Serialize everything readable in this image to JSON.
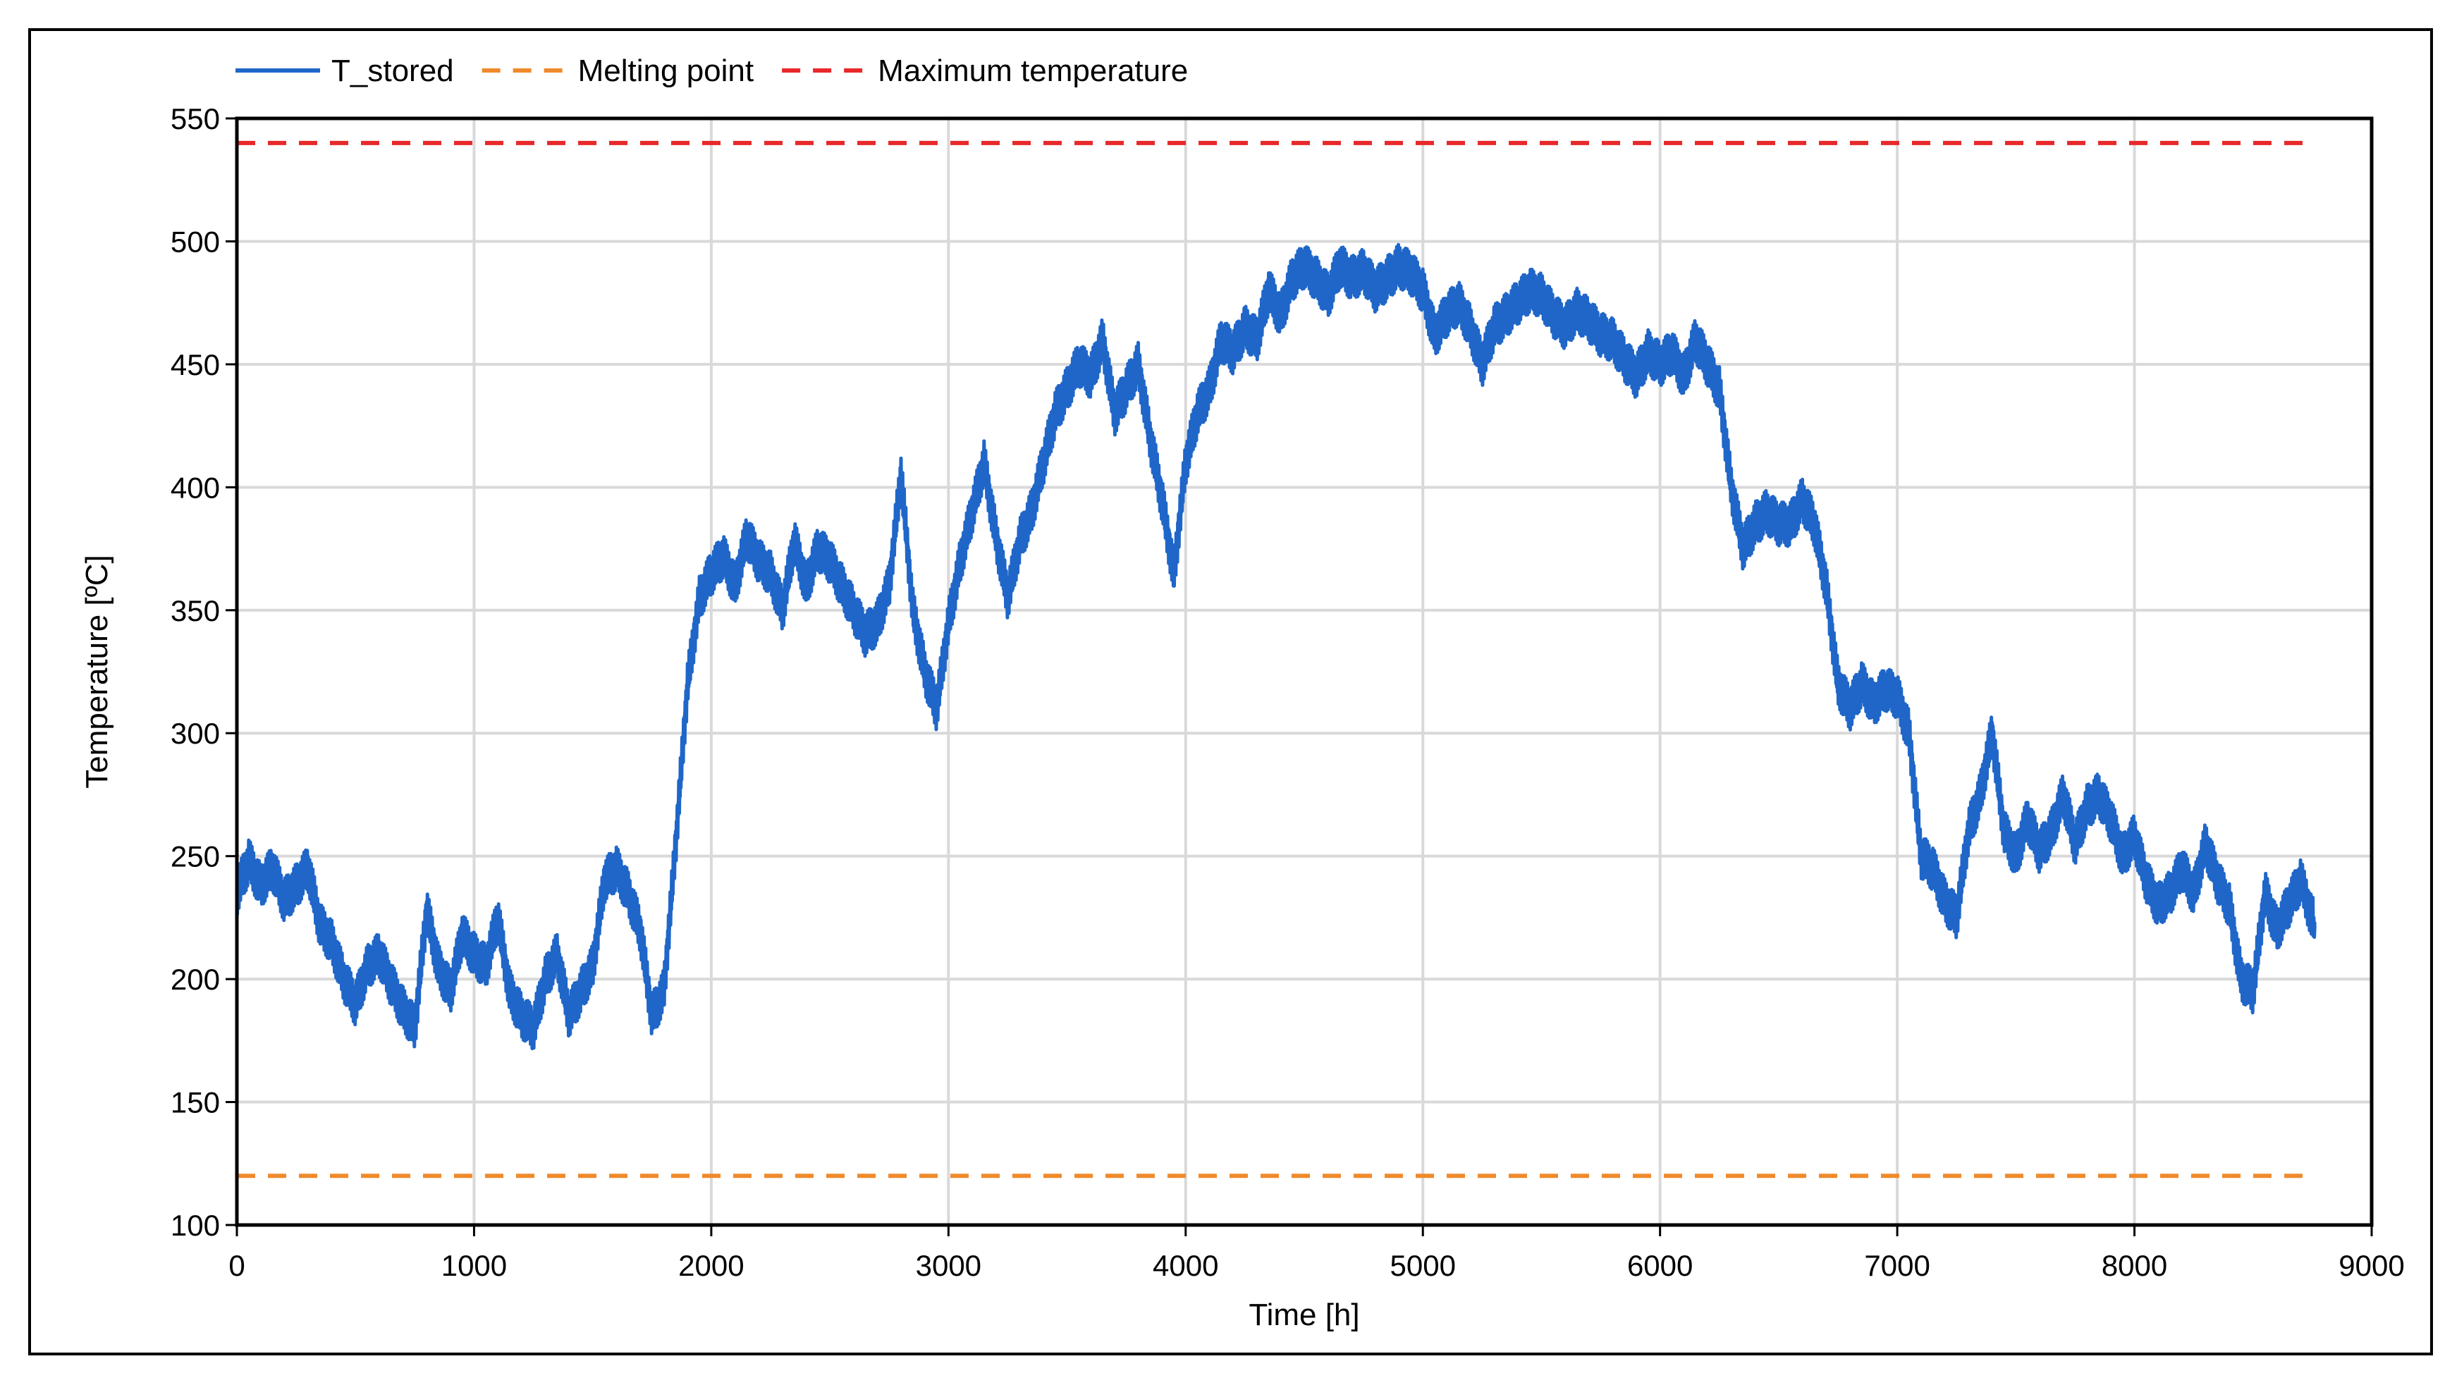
{
  "chart_data": {
    "type": "line",
    "xlabel": "Time [h]",
    "ylabel": "Temperature [ºC]",
    "xlim": [
      0,
      9000
    ],
    "ylim": [
      100,
      550
    ],
    "xticks": [
      0,
      1000,
      2000,
      3000,
      4000,
      5000,
      6000,
      7000,
      8000,
      9000
    ],
    "yticks": [
      100,
      150,
      200,
      250,
      300,
      350,
      400,
      450,
      500,
      550
    ],
    "grid": true,
    "legend_position": "top-left-outside",
    "series": [
      {
        "name": "T_stored",
        "color": "#1f66c8",
        "style": "solid",
        "x": [
          0,
          50,
          100,
          150,
          200,
          250,
          300,
          350,
          400,
          450,
          500,
          550,
          600,
          650,
          700,
          750,
          800,
          850,
          900,
          950,
          1000,
          1050,
          1100,
          1150,
          1200,
          1250,
          1300,
          1350,
          1400,
          1450,
          1500,
          1550,
          1600,
          1650,
          1700,
          1750,
          1800,
          1850,
          1900,
          1950,
          2000,
          2050,
          2100,
          2150,
          2200,
          2250,
          2300,
          2350,
          2400,
          2450,
          2500,
          2550,
          2600,
          2650,
          2700,
          2750,
          2800,
          2850,
          2900,
          2950,
          3000,
          3050,
          3100,
          3150,
          3200,
          3250,
          3300,
          3350,
          3400,
          3450,
          3500,
          3550,
          3600,
          3650,
          3700,
          3750,
          3800,
          3850,
          3900,
          3950,
          4000,
          4050,
          4100,
          4150,
          4200,
          4250,
          4300,
          4350,
          4400,
          4450,
          4500,
          4550,
          4600,
          4650,
          4700,
          4750,
          4800,
          4850,
          4900,
          4950,
          5000,
          5050,
          5100,
          5150,
          5200,
          5250,
          5300,
          5350,
          5400,
          5450,
          5500,
          5550,
          5600,
          5650,
          5700,
          5750,
          5800,
          5850,
          5900,
          5950,
          6000,
          6050,
          6100,
          6150,
          6200,
          6250,
          6300,
          6350,
          6400,
          6450,
          6500,
          6550,
          6600,
          6650,
          6700,
          6750,
          6800,
          6850,
          6900,
          6950,
          7000,
          7050,
          7100,
          7150,
          7200,
          7250,
          7300,
          7350,
          7400,
          7450,
          7500,
          7550,
          7600,
          7650,
          7700,
          7750,
          7800,
          7850,
          7900,
          7950,
          8000,
          8050,
          8100,
          8150,
          8200,
          8250,
          8300,
          8350,
          8400,
          8450,
          8500,
          8550,
          8600,
          8650,
          8700,
          8760
        ],
        "y": [
          235,
          248,
          238,
          245,
          232,
          238,
          245,
          222,
          215,
          200,
          190,
          205,
          210,
          198,
          188,
          180,
          228,
          205,
          195,
          218,
          210,
          205,
          225,
          195,
          185,
          180,
          200,
          210,
          185,
          195,
          205,
          240,
          245,
          235,
          220,
          185,
          195,
          255,
          320,
          355,
          365,
          372,
          360,
          380,
          370,
          365,
          350,
          378,
          360,
          375,
          370,
          360,
          350,
          340,
          345,
          360,
          405,
          350,
          325,
          310,
          345,
          370,
          390,
          410,
          380,
          355,
          378,
          390,
          410,
          430,
          440,
          450,
          445,
          460,
          430,
          440,
          450,
          420,
          395,
          365,
          410,
          430,
          440,
          460,
          455,
          465,
          460,
          480,
          470,
          485,
          490,
          485,
          478,
          490,
          485,
          488,
          480,
          485,
          490,
          487,
          480,
          462,
          470,
          475,
          465,
          450,
          465,
          470,
          475,
          480,
          478,
          470,
          465,
          472,
          468,
          462,
          460,
          452,
          445,
          455,
          450,
          455,
          445,
          460,
          450,
          440,
          400,
          375,
          385,
          390,
          385,
          385,
          395,
          385,
          360,
          320,
          310,
          320,
          312,
          318,
          315,
          300,
          250,
          245,
          232,
          225,
          260,
          275,
          300,
          260,
          250,
          265,
          252,
          260,
          275,
          255,
          270,
          275,
          265,
          250,
          258,
          240,
          230,
          235,
          245,
          235,
          255,
          240,
          230,
          200,
          195,
          235,
          220,
          230,
          240,
          222
        ],
        "band": 9
      },
      {
        "name": "Melting point",
        "color": "#f08a2c",
        "style": "dashed",
        "x": [
          0,
          8760
        ],
        "y": [
          120,
          120
        ]
      },
      {
        "name": "Maximum temperature",
        "color": "#e8282a",
        "style": "dashed",
        "x": [
          0,
          8760
        ],
        "y": [
          540,
          540
        ]
      }
    ]
  }
}
